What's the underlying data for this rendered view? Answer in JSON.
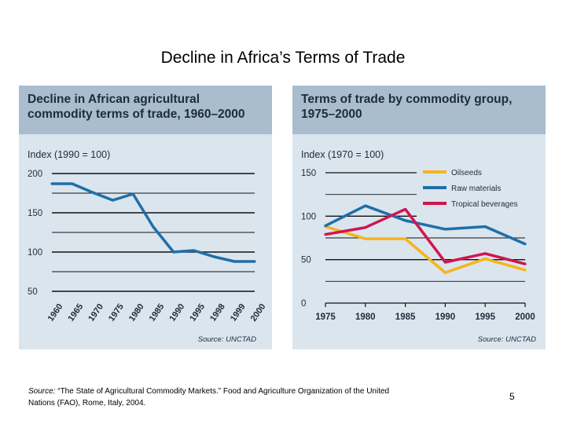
{
  "slide": {
    "title": "Decline in Africa’s Terms of Trade",
    "source_label": "Source:",
    "source_text": " “The State of Agricultural Commodity Markets.” Food and Agriculture Organization of the United Nations (FAO), Rome, Italy, 2004.",
    "page_number": "5"
  },
  "colors": {
    "series_blue": "#1f6fa8",
    "oilseeds": "#f5b51b",
    "raw_materials": "#1f6fa8",
    "tropical": "#d1154e",
    "panel_bg": "#dbe5ee",
    "panel_head": "#a9bdcf"
  },
  "chart_data": [
    {
      "type": "line",
      "title": "Decline in African agricultural commodity terms of trade, 1960–2000",
      "ylabel": "Index (1990 = 100)",
      "xlabel": "",
      "source": "Source: UNCTAD",
      "ylim": [
        50,
        200
      ],
      "yticks": [
        "200",
        "150",
        "100",
        "50"
      ],
      "ytick_values": [
        200,
        150,
        100,
        50
      ],
      "grid": true,
      "x_tick_labels": [
        "1960",
        "1965",
        "1970",
        "1975",
        "1980",
        "1985",
        "1990",
        "1995",
        "1998",
        "1999",
        "2000"
      ],
      "series": [
        {
          "x": [
            1960,
            1965,
            1970,
            1975,
            1980,
            1985,
            1990,
            1995,
            1998,
            1999,
            2000
          ],
          "values": [
            187,
            187,
            176,
            166,
            174,
            132,
            100,
            102,
            94,
            88,
            88
          ]
        }
      ]
    },
    {
      "type": "line",
      "title": "Terms of trade by commodity group, 1975–2000",
      "ylabel": "Index (1970 = 100)",
      "xlabel": "",
      "source": "Source: UNCTAD",
      "ylim": [
        0,
        150
      ],
      "yticks": [
        "150",
        "100",
        "50",
        "0"
      ],
      "ytick_values": [
        150,
        100,
        50,
        0
      ],
      "grid": true,
      "legend": "top-right",
      "categories": [
        "1975",
        "1980",
        "1985",
        "1990",
        "1995",
        "2000"
      ],
      "series": [
        {
          "name": "Oilseeds",
          "values": [
            88,
            74,
            74,
            35,
            51,
            38
          ]
        },
        {
          "name": "Raw materials",
          "values": [
            89,
            112,
            95,
            85,
            88,
            68
          ]
        },
        {
          "name": "Tropical beverages",
          "values": [
            79,
            87,
            108,
            47,
            57,
            45
          ]
        }
      ]
    }
  ]
}
